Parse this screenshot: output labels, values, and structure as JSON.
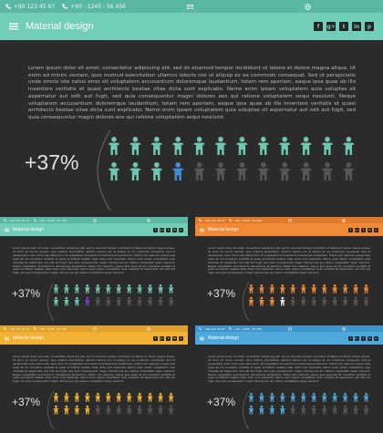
{
  "header": {
    "phone": "+90 123 45 67",
    "phone2": "+90 - 1245 - 56 456",
    "title": "Material design",
    "social": [
      "f",
      "g+",
      "t",
      "in",
      "p"
    ]
  },
  "body_text": "Lorem ipsum dolor sit amet, consectetur adipiscing elit, sed do eiusmod tempor incididunt ut labore et dolore magna aliqua. Ut enim ad minim veniam, quis nostrud exercitation ullamco laboris nisi ut aliquip ex ea commodo consequat. Sed ut perspiciatis unde omnis iste natus error sit voluptatem accusantium doloremque laudantium, totam rem aperiam, eaque ipsa quae ab illo inventore veritatis et quasi architecto beatae vitae dicta sunt explicabo. Nemo enim ipsam voluptatem quia voluptas sit aspernatur aut odit aut fugit, sed quia consequuntur magni dolores eos qui ratione voluptatem sequi nesciunt. Neque voluptatem accusantium doloremque laudantium, totam rem aperiam, eaque ipsa quae ab illo inventore veritatis et quasi architecto beatae vitae dicta sunt explicabo. Nemo enim ipsam voluptatem quia voluptas sit aspernatur aut odit aut fugit, sed quia consequuntur magni dolores eos qui ratione voluptatem sequi nesciunt.",
  "stat": {
    "label": "+37%",
    "total": 24,
    "filled": 16,
    "highlight_index": 15
  },
  "themes": [
    {
      "id": "main",
      "strip": "#5ab7a4",
      "nav": "#72cdb9",
      "filled": "#6fc7b2",
      "highlight": "#3f8fd6",
      "empty": "#565656"
    },
    {
      "id": "teal",
      "strip": "#5ab7a4",
      "nav": "#72cdb9",
      "filled": "#6fc7b2",
      "highlight": "#7a3fc4",
      "empty": "#565656"
    },
    {
      "id": "orange",
      "strip": "#e07a2a",
      "nav": "#f08a36",
      "filled": "#f08a36",
      "highlight": "#e8e8e8",
      "empty": "#565656"
    },
    {
      "id": "yellow",
      "strip": "#e0a12a",
      "nav": "#f2b134",
      "filled": "#f2b134",
      "highlight": "#f2b134",
      "empty": "#565656"
    },
    {
      "id": "blue",
      "strip": "#3f95c9",
      "nav": "#4fa8dc",
      "filled": "#4fa8dc",
      "highlight": "#4fa8dc",
      "empty": "#565656"
    }
  ]
}
